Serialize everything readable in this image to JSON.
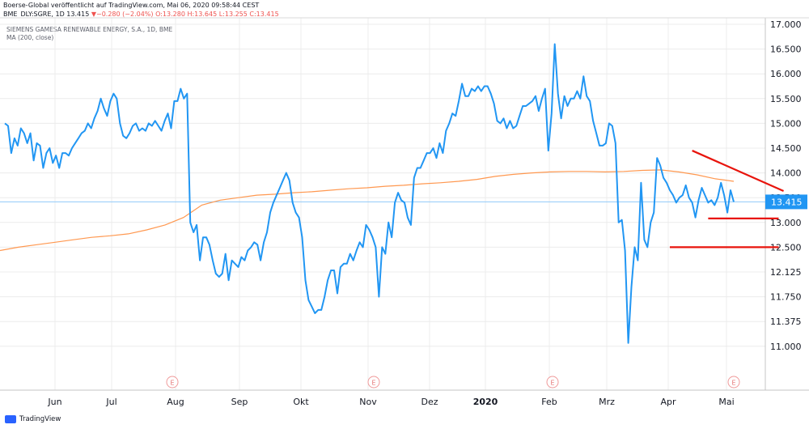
{
  "header": {
    "line1": "Boerse-Global veröffentlicht auf TradingView.com, Mai 06, 2020 09:58:44 CEST",
    "symbol": "BME_DLY:SGRE, 1D",
    "last": "13.415",
    "change": "−0.280 (−2.04%)",
    "ohlc": "O:13.280 H:13.645 L:13.255 C:13.415",
    "down_marker": "▼"
  },
  "legend": {
    "title": "SIEMENS GAMESA RENEWABLE ENERGY, S.A., 1D, BME",
    "ma": "MA (200, close)"
  },
  "footer": {
    "brand": "TradingView"
  },
  "colors": {
    "price": "#2196f3",
    "ma": "#ff9850",
    "trend": "#e8140c",
    "grid": "#ececec",
    "label_bg": "#2196f3"
  },
  "chart_data": {
    "type": "line",
    "y_axis_side": "right",
    "ylim": [
      10.8,
      17.1
    ],
    "y_ticks": [
      "17.000",
      "16.500",
      "16.000",
      "15.500",
      "15.000",
      "14.500",
      "14.000",
      "13.500",
      "13.000",
      "12.500",
      "12.125",
      "11.750",
      "11.375",
      "11.000"
    ],
    "x_tick_labels": [
      "Jun",
      "Jul",
      "Aug",
      "Sep",
      "Okt",
      "Nov",
      "Dez",
      "2020",
      "Feb",
      "Mrz",
      "Apr",
      "Mai"
    ],
    "last_price_label": "13.415",
    "earnings_label": "E",
    "earnings_markers_count": 4,
    "series": [
      {
        "kind": "price",
        "values": [
          15.0,
          14.95,
          14.4,
          14.7,
          14.55,
          14.9,
          14.8,
          14.6,
          14.8,
          14.25,
          14.6,
          14.55,
          14.1,
          14.4,
          14.5,
          14.2,
          14.35,
          14.1,
          14.4,
          14.4,
          14.35,
          14.5,
          14.6,
          14.7,
          14.8,
          14.85,
          15.0,
          14.9,
          15.1,
          15.25,
          15.5,
          15.3,
          15.15,
          15.45,
          15.6,
          15.5,
          15.0,
          14.75,
          14.7,
          14.8,
          14.95,
          15.0,
          14.85,
          14.9,
          14.85,
          15.0,
          14.95,
          15.05,
          14.95,
          14.85,
          15.05,
          15.2,
          14.9,
          15.45,
          15.45,
          15.7,
          15.5,
          15.6,
          13.0,
          12.8,
          12.95,
          12.3,
          12.7,
          12.7,
          12.55,
          12.3,
          12.1,
          12.05,
          12.1,
          12.4,
          12.0,
          12.3,
          12.25,
          12.2,
          12.35,
          12.3,
          12.45,
          12.5,
          12.6,
          12.55,
          12.3,
          12.6,
          12.8,
          13.2,
          13.4,
          13.55,
          13.7,
          13.85,
          14.0,
          13.85,
          13.4,
          13.2,
          13.1,
          12.7,
          12.0,
          11.7,
          11.6,
          11.5,
          11.55,
          11.55,
          11.75,
          12.0,
          12.15,
          12.15,
          11.8,
          12.2,
          12.25,
          12.25,
          12.4,
          12.3,
          12.45,
          12.6,
          12.5,
          12.95,
          12.85,
          12.7,
          12.5,
          11.75,
          12.5,
          12.4,
          13.0,
          12.7,
          13.4,
          13.6,
          13.45,
          13.4,
          13.1,
          12.95,
          13.9,
          14.1,
          14.1,
          14.25,
          14.4,
          14.4,
          14.5,
          14.3,
          14.6,
          14.4,
          14.85,
          15.0,
          15.2,
          15.15,
          15.45,
          15.8,
          15.55,
          15.55,
          15.7,
          15.65,
          15.75,
          15.65,
          15.75,
          15.75,
          15.6,
          15.4,
          15.05,
          15.0,
          15.1,
          14.9,
          15.05,
          14.9,
          14.95,
          15.15,
          15.35,
          15.35,
          15.4,
          15.45,
          15.55,
          15.25,
          15.5,
          15.7,
          14.45,
          15.2,
          16.6,
          15.6,
          15.1,
          15.55,
          15.35,
          15.5,
          15.5,
          15.65,
          15.5,
          15.95,
          15.55,
          15.45,
          15.05,
          14.8,
          14.55,
          14.55,
          14.6,
          15.0,
          14.95,
          14.6,
          13.0,
          13.05,
          12.45,
          11.05,
          11.9,
          12.5,
          12.3,
          13.8,
          12.65,
          12.5,
          13.0,
          13.2,
          14.3,
          14.15,
          13.9,
          13.8,
          13.65,
          13.55,
          13.4,
          13.5,
          13.55,
          13.75,
          13.5,
          13.4,
          13.1,
          13.45,
          13.7,
          13.55,
          13.4,
          13.45,
          13.35,
          13.5,
          13.8,
          13.55,
          13.2,
          13.65,
          13.415
        ]
      },
      {
        "kind": "ma",
        "name": "MA (200, close)",
        "values": [
          12.45,
          12.5,
          12.55,
          12.6,
          12.65,
          12.7,
          12.73,
          12.77,
          12.85,
          12.95,
          13.1,
          13.35,
          13.45,
          13.5,
          13.55,
          13.57,
          13.6,
          13.62,
          13.65,
          13.68,
          13.7,
          13.73,
          13.75,
          13.78,
          13.8,
          13.83,
          13.87,
          13.93,
          13.97,
          14.0,
          14.02,
          14.03,
          14.03,
          14.02,
          14.03,
          14.05,
          14.06,
          14.02,
          13.96,
          13.88,
          13.83
        ]
      }
    ],
    "annotations": [
      {
        "kind": "trendline",
        "points": [
          [
            215,
            14.45
          ],
          [
            237,
            13.7
          ]
        ]
      },
      {
        "kind": "hline",
        "value": 13.08,
        "x_range": [
          220,
          239
        ]
      },
      {
        "kind": "hline",
        "value": 12.5,
        "x_range": [
          208,
          239
        ]
      }
    ]
  }
}
